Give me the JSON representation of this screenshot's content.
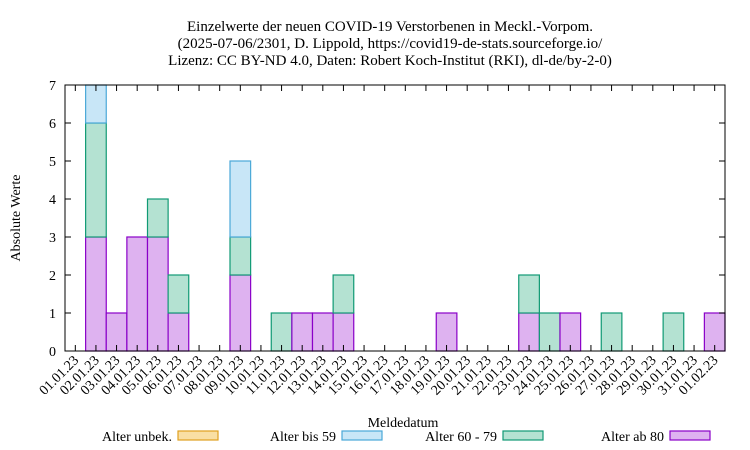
{
  "chart_data": {
    "type": "bar",
    "stacked": true,
    "title_lines": [
      "Einzelwerte der neuen COVID-19 Verstorbenen in Meckl.-Vorpom.",
      "(2025-07-06/2301, D. Lippold, https://covid19-de-stats.sourceforge.io/",
      "Lizenz: CC BY-ND 4.0, Daten: Robert Koch-Institut (RKI), dl-de/by-2-0)"
    ],
    "xlabel": "Meldedatum",
    "ylabel": "Absolute Werte",
    "ylim": [
      0,
      7
    ],
    "yticks": [
      "0",
      "1",
      "2",
      "3",
      "4",
      "5",
      "6",
      "7"
    ],
    "grid": false,
    "legend_position": "bottom",
    "categories": [
      "01.01.23",
      "02.01.23",
      "03.01.23",
      "04.01.23",
      "05.01.23",
      "06.01.23",
      "07.01.23",
      "08.01.23",
      "09.01.23",
      "10.01.23",
      "11.01.23",
      "12.01.23",
      "13.01.23",
      "14.01.23",
      "15.01.23",
      "16.01.23",
      "17.01.23",
      "18.01.23",
      "19.01.23",
      "20.01.23",
      "21.01.23",
      "22.01.23",
      "23.01.23",
      "24.01.23",
      "25.01.23",
      "26.01.23",
      "27.01.23",
      "28.01.23",
      "29.01.23",
      "30.01.23",
      "31.01.23",
      "01.02.23"
    ],
    "series": [
      {
        "name": "Alter unbek.",
        "fill": "#f9dfa4",
        "stroke": "#e0a020",
        "values": [
          0,
          0,
          0,
          0,
          0,
          0,
          0,
          0,
          0,
          0,
          0,
          0,
          0,
          0,
          0,
          0,
          0,
          0,
          0,
          0,
          0,
          0,
          0,
          0,
          0,
          0,
          0,
          0,
          0,
          0,
          0,
          0
        ]
      },
      {
        "name": "Alter ab 80",
        "fill": "#deb2f0",
        "stroke": "#8a00c8",
        "values": [
          0,
          3,
          1,
          3,
          3,
          1,
          0,
          0,
          2,
          0,
          0,
          1,
          1,
          1,
          0,
          0,
          0,
          0,
          1,
          0,
          0,
          0,
          1,
          0,
          1,
          0,
          0,
          0,
          0,
          0,
          0,
          1
        ]
      },
      {
        "name": "Alter 60 - 79",
        "fill": "#b4e2d2",
        "stroke": "#109a74",
        "values": [
          0,
          3,
          0,
          0,
          1,
          1,
          0,
          0,
          1,
          0,
          1,
          0,
          0,
          1,
          0,
          0,
          0,
          0,
          0,
          0,
          0,
          0,
          1,
          1,
          0,
          0,
          1,
          0,
          0,
          1,
          0,
          0
        ]
      },
      {
        "name": "Alter bis 59",
        "fill": "#c8e6f7",
        "stroke": "#4aa8d8",
        "values": [
          0,
          1,
          0,
          0,
          0,
          0,
          0,
          0,
          2,
          0,
          0,
          0,
          0,
          0,
          0,
          0,
          0,
          0,
          0,
          0,
          0,
          0,
          0,
          0,
          0,
          0,
          0,
          0,
          0,
          0,
          0,
          0
        ]
      }
    ],
    "legend_order": [
      "Alter unbek.",
      "Alter bis 59",
      "Alter 60 - 79",
      "Alter ab 80"
    ]
  }
}
